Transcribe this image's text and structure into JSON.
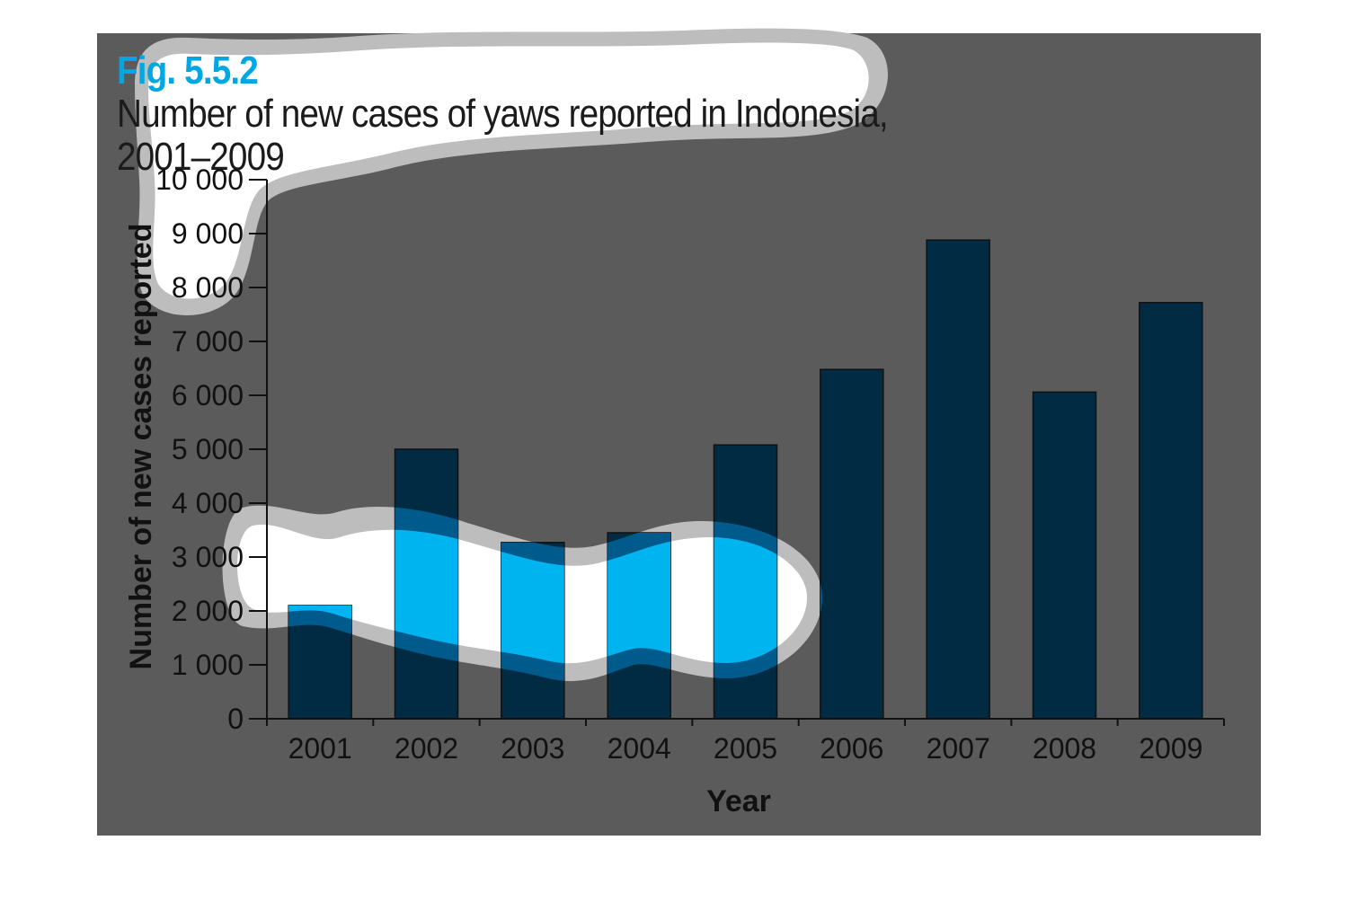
{
  "figure": {
    "label": "Fig. 5.5.2",
    "caption_line1": "Number of new cases of yaws reported in Indonesia,",
    "caption_line2": "2001–2009",
    "background": "#5b5b5b",
    "label_color": "#00a7e1"
  },
  "chart_data": {
    "type": "bar",
    "categories": [
      "2001",
      "2002",
      "2003",
      "2004",
      "2005",
      "2006",
      "2007",
      "2008",
      "2009"
    ],
    "values": [
      2100,
      5000,
      3270,
      3450,
      5080,
      6480,
      8880,
      6060,
      7720
    ],
    "xlabel": "Year",
    "ylabel": "Number of new cases reported",
    "ylim": [
      0,
      10000
    ],
    "yticks": [
      0,
      1000,
      2000,
      3000,
      4000,
      5000,
      6000,
      7000,
      8000,
      9000,
      10000
    ],
    "ytick_labels": [
      "0",
      "1 000",
      "2 000",
      "3 000",
      "4 000",
      "5 000",
      "6 000",
      "7 000",
      "8 000",
      "9 000",
      "10 000"
    ],
    "grid": false,
    "bar_color": "#002b42",
    "highlight_color": "#00b4f0"
  }
}
